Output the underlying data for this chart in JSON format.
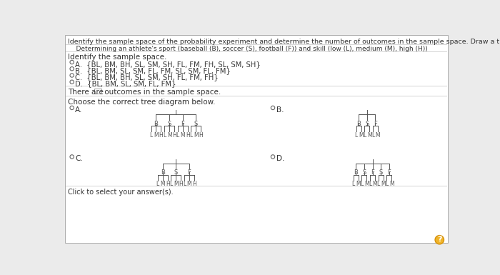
{
  "bg_color": "#ebebeb",
  "panel_color": "#ffffff",
  "title_line1": "Identify the sample space of the probability experiment and determine the number of outcomes in the sample space. Draw a tree diagram.",
  "subtitle": "    Determining an athlete's sport (baseball (B), soccer (S), football (F)) and skill (low (L), medium (M), high (H))",
  "section1": "Identify the sample space.",
  "options": [
    "{BL, BM, BH, SL, SM, SH, FL, FM, FH, SL, SM, SH}",
    "{BL, BM, SL, SM, FL, FM, SL, SM, FL, FM}",
    "{BL, BM, BH, SL, SM, SH, FL, FM, FH}",
    "{BL, BM, SL, SM, FL, FM}"
  ],
  "opt_labels": [
    "A.",
    "B.",
    "C.",
    "D."
  ],
  "there_are_text1": "There are ",
  "there_are_text2": " outcomes in the sample space.",
  "choose_text": "Choose the correct tree diagram below.",
  "click_text": "Click to select your answer(s).",
  "diagrams": {
    "A": {
      "level1": [
        "B",
        "S",
        "F",
        "S"
      ],
      "level2": [
        [
          "L",
          "M",
          "H"
        ],
        [
          "L",
          "M",
          "H"
        ],
        [
          "L",
          "M",
          "H"
        ],
        [
          "L",
          "M",
          "H"
        ]
      ]
    },
    "B": {
      "level1": [
        "B",
        "S",
        "F"
      ],
      "level2": [
        [
          "L",
          "M"
        ],
        [
          "L",
          "M"
        ],
        [
          "L",
          "M"
        ]
      ]
    },
    "C": {
      "level1": [
        "B",
        "S",
        "F"
      ],
      "level2": [
        [
          "L",
          "M",
          "H"
        ],
        [
          "L",
          "M",
          "H"
        ],
        [
          "L",
          "M",
          "H"
        ]
      ]
    },
    "D": {
      "level1": [
        "B",
        "S",
        "F",
        "S",
        "F"
      ],
      "level2": [
        [
          "L",
          "M"
        ],
        [
          "L",
          "M"
        ],
        [
          "L",
          "M"
        ],
        [
          "L",
          "M"
        ],
        [
          "L",
          "M"
        ]
      ]
    }
  },
  "text_color": "#333333",
  "line_color": "#555555",
  "sep_color": "#cccccc",
  "radio_edge": "#666666",
  "fs_title": 6.8,
  "fs_body": 7.5,
  "fs_option": 7.2,
  "fs_tree": 6.0,
  "fs_click": 7.0
}
